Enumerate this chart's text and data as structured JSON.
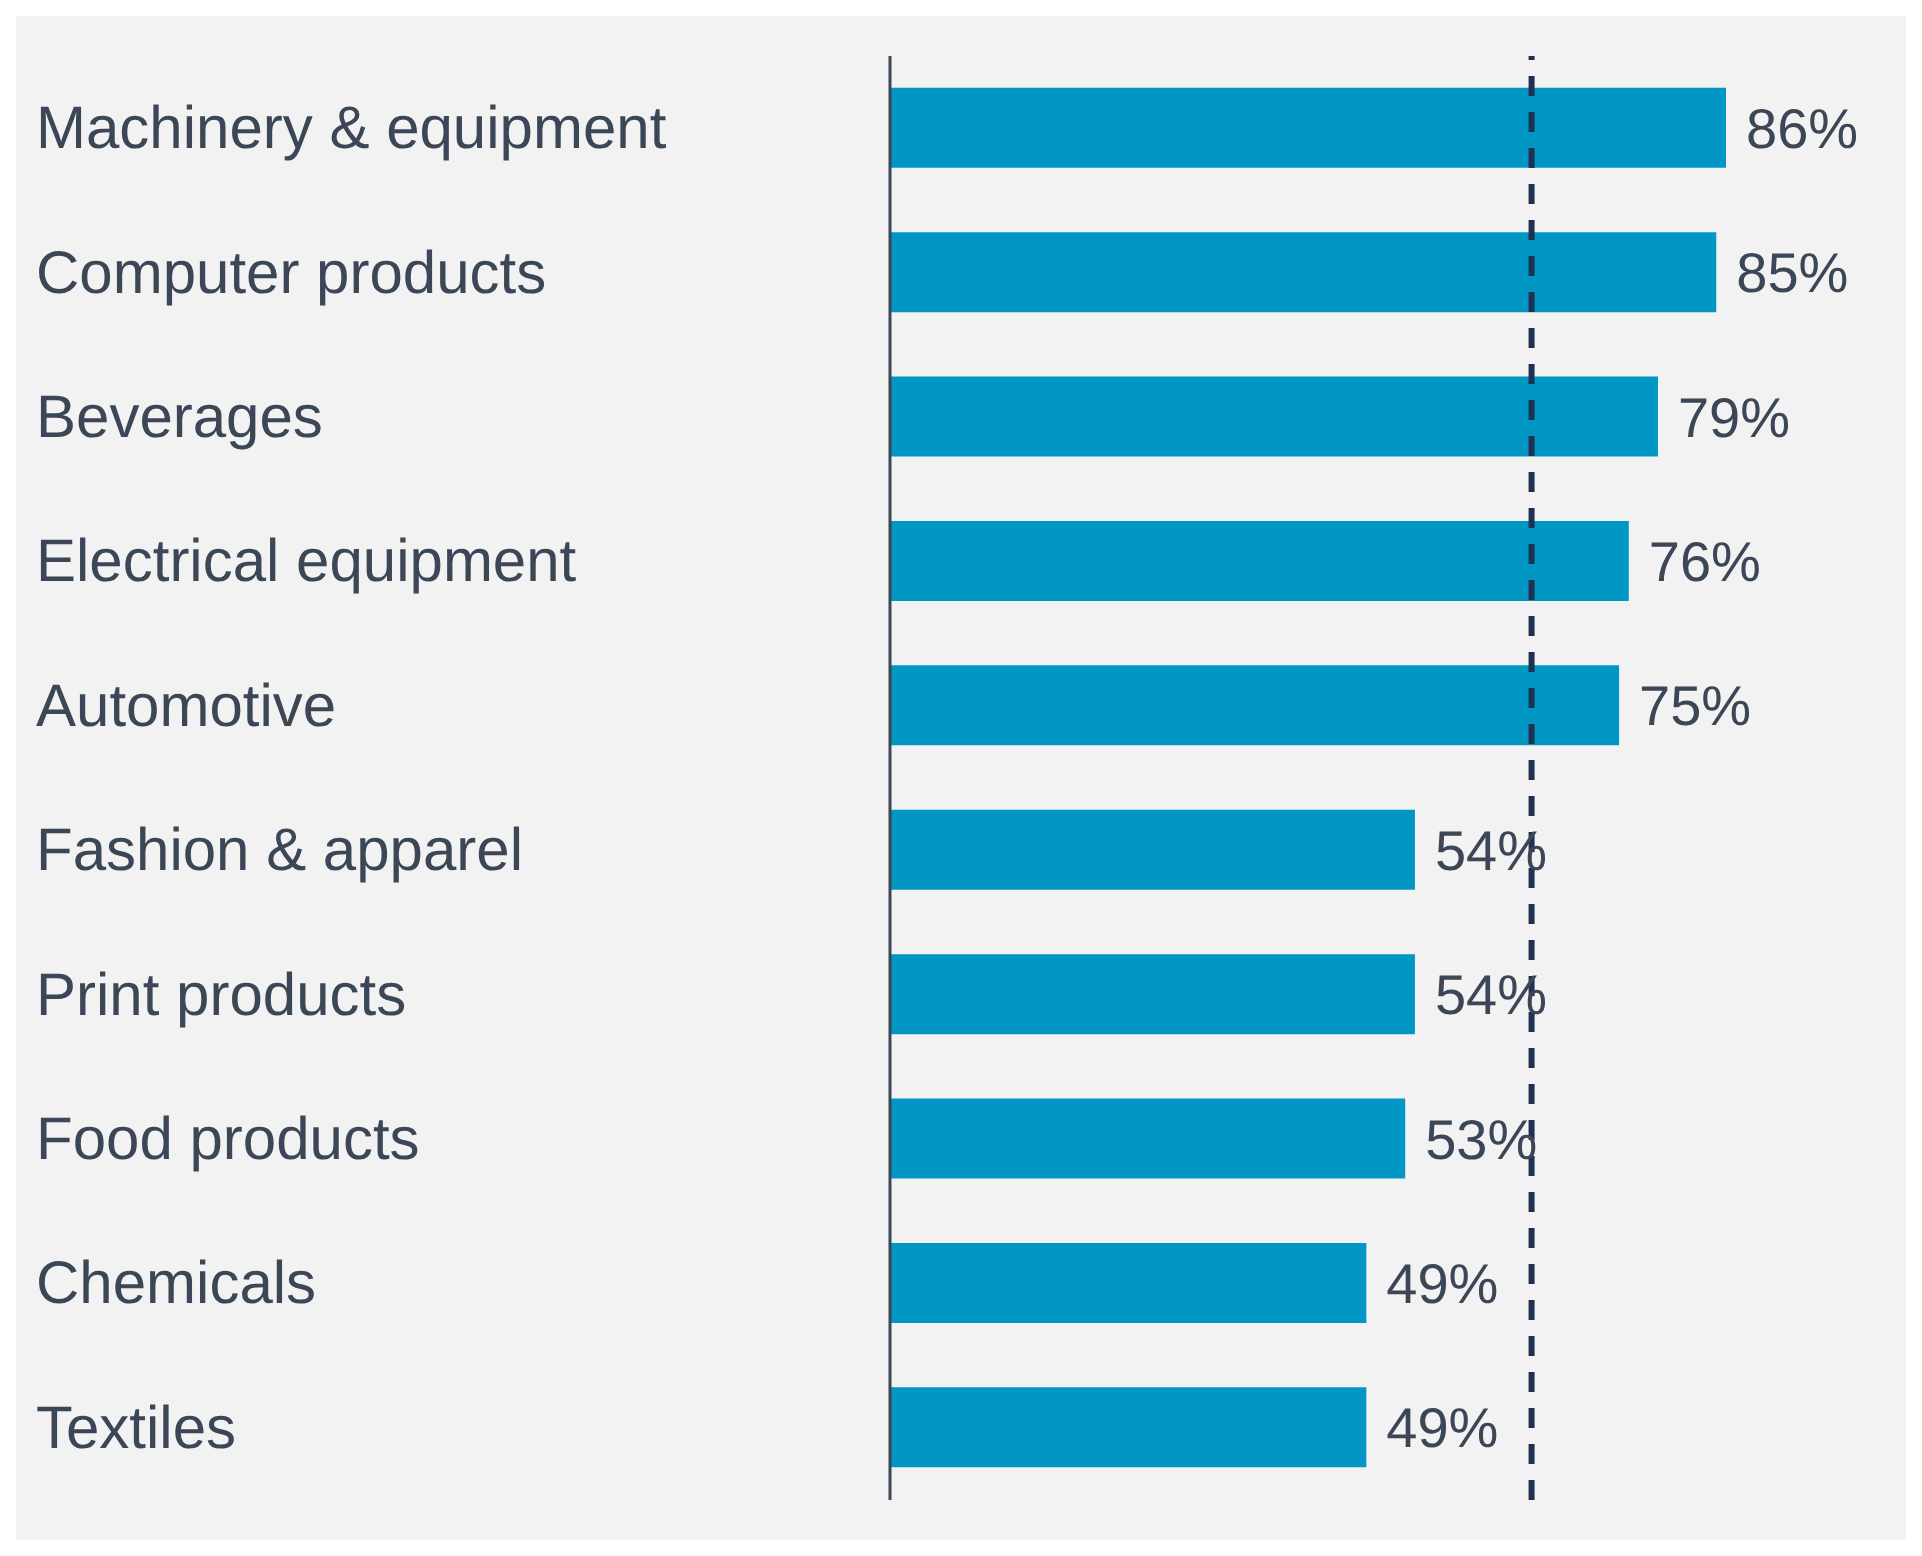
{
  "chart_data": {
    "type": "bar",
    "orientation": "horizontal",
    "relative": false,
    "categories": [
      "Machinery & equipment",
      "Computer products",
      "Beverages",
      "Electrical equipment",
      "Automotive",
      "Fashion & apparel",
      "Print products",
      "Food products",
      "Chemicals",
      "Textiles"
    ],
    "values": [
      86,
      85,
      79,
      76,
      75,
      54,
      54,
      53,
      49,
      49
    ],
    "color": "#0097c4",
    "value_labels": [
      "86%",
      "85%",
      "79%",
      "76%",
      "75%",
      "54%",
      "54%",
      "53%",
      "49%",
      "49%"
    ],
    "ref_lines": [
      {
        "axis": "x",
        "value": 66,
        "color": "#1f3050",
        "line_style": "dashed"
      }
    ],
    "grid": false,
    "legend": false
  }
}
